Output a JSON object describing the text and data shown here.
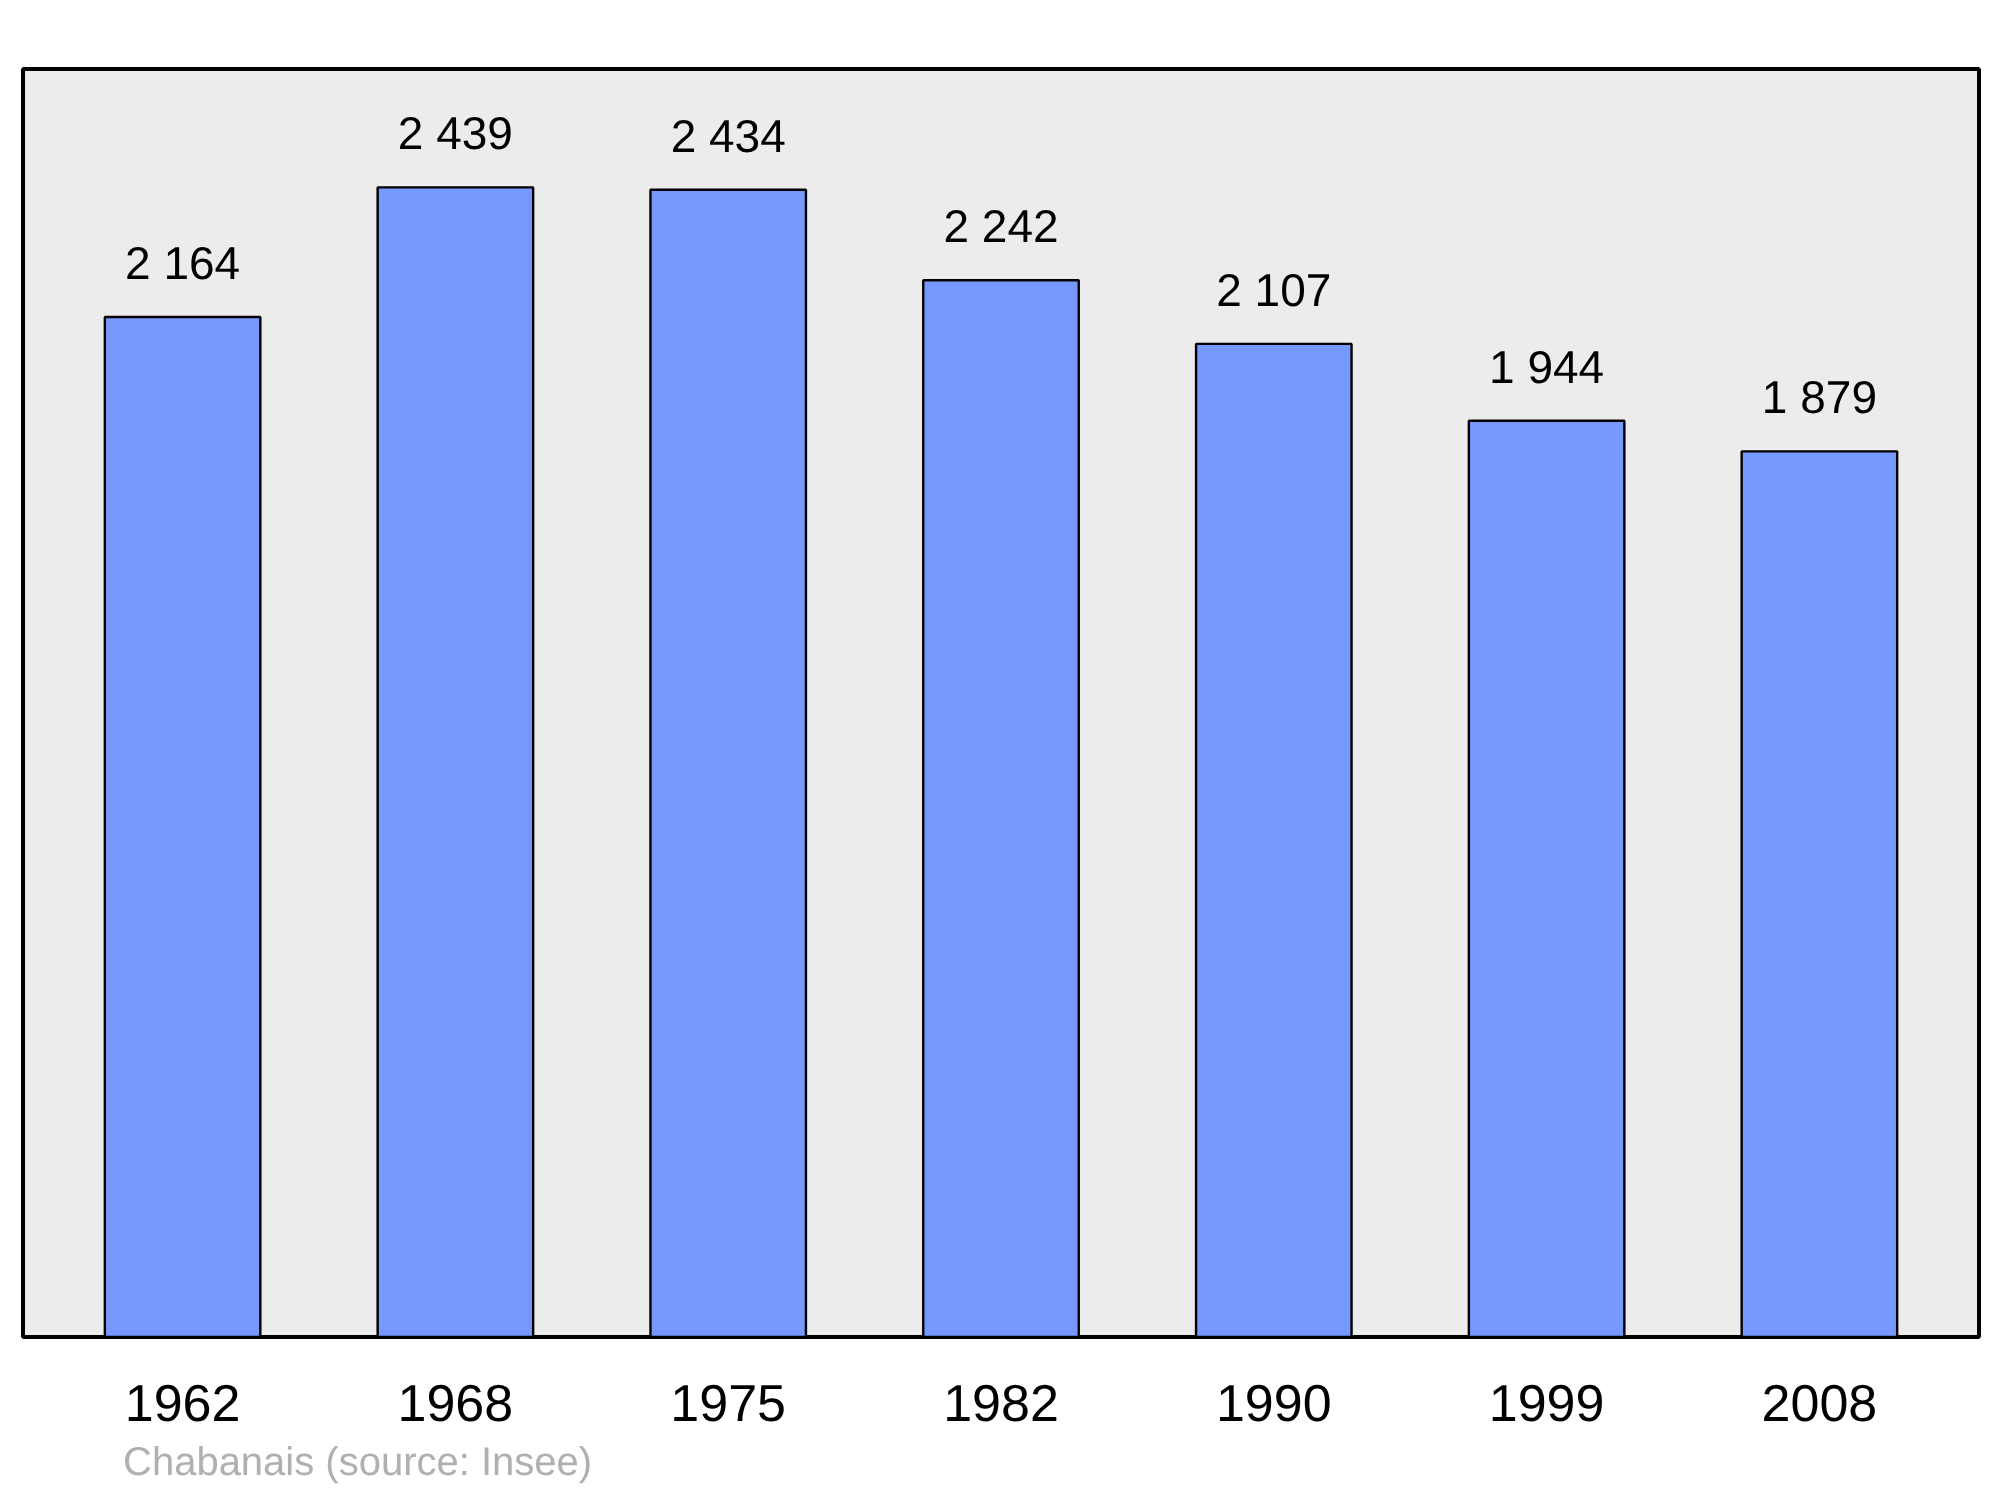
{
  "chart_data": {
    "type": "bar",
    "categories": [
      "1962",
      "1968",
      "1975",
      "1982",
      "1990",
      "1999",
      "2008"
    ],
    "values": [
      2164,
      2439,
      2434,
      2242,
      2107,
      1944,
      1879
    ],
    "color": "#7799ff",
    "data_labels": true,
    "grid": false,
    "tick_labels": "x",
    "annotations": [
      "Chabanais    (source: Insee)"
    ]
  }
}
